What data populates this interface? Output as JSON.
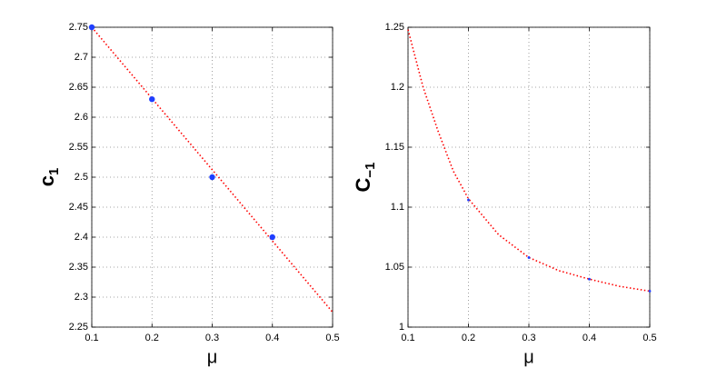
{
  "chart_data": [
    {
      "type": "line",
      "xlabel": "μ",
      "ylabel": "c",
      "ylabel_subscript": "1",
      "xlim": [
        0.1,
        0.5
      ],
      "xticks": [
        0.1,
        0.2,
        0.3,
        0.4,
        0.5
      ],
      "ylim": [
        2.25,
        2.75
      ],
      "yticks": [
        2.25,
        2.3,
        2.35,
        2.4,
        2.45,
        2.5,
        2.55,
        2.6,
        2.65,
        2.7,
        2.75
      ],
      "grid": true,
      "series": [
        {
          "style": "dotted",
          "color": "#ff0000",
          "x": [
            0.1,
            0.5
          ],
          "values": [
            2.75,
            2.275
          ]
        },
        {
          "style": "markers",
          "color": "#1f3fff",
          "x": [
            0.1,
            0.2,
            0.3,
            0.4
          ],
          "values": [
            2.75,
            2.63,
            2.5,
            2.4
          ]
        }
      ]
    },
    {
      "type": "line",
      "xlabel": "μ",
      "ylabel": "C",
      "ylabel_subscript": "−1",
      "xlim": [
        0.1,
        0.5
      ],
      "xticks": [
        0.1,
        0.2,
        0.3,
        0.4,
        0.5
      ],
      "ylim": [
        1,
        1.25
      ],
      "yticks": [
        1,
        1.05,
        1.1,
        1.15,
        1.2,
        1.25
      ],
      "grid": true,
      "series": [
        {
          "style": "dotted",
          "color": "#ff0000",
          "x": [
            0.1,
            0.125,
            0.15,
            0.175,
            0.2,
            0.25,
            0.3,
            0.35,
            0.4,
            0.45,
            0.5
          ],
          "values": [
            1.248,
            1.2,
            1.163,
            1.13,
            1.107,
            1.077,
            1.058,
            1.047,
            1.04,
            1.034,
            1.03
          ]
        },
        {
          "style": "markers",
          "color": "#1f3fff",
          "x": [
            0.2,
            0.3,
            0.4,
            0.5
          ],
          "values": [
            1.106,
            1.058,
            1.04,
            1.03
          ]
        }
      ]
    }
  ]
}
